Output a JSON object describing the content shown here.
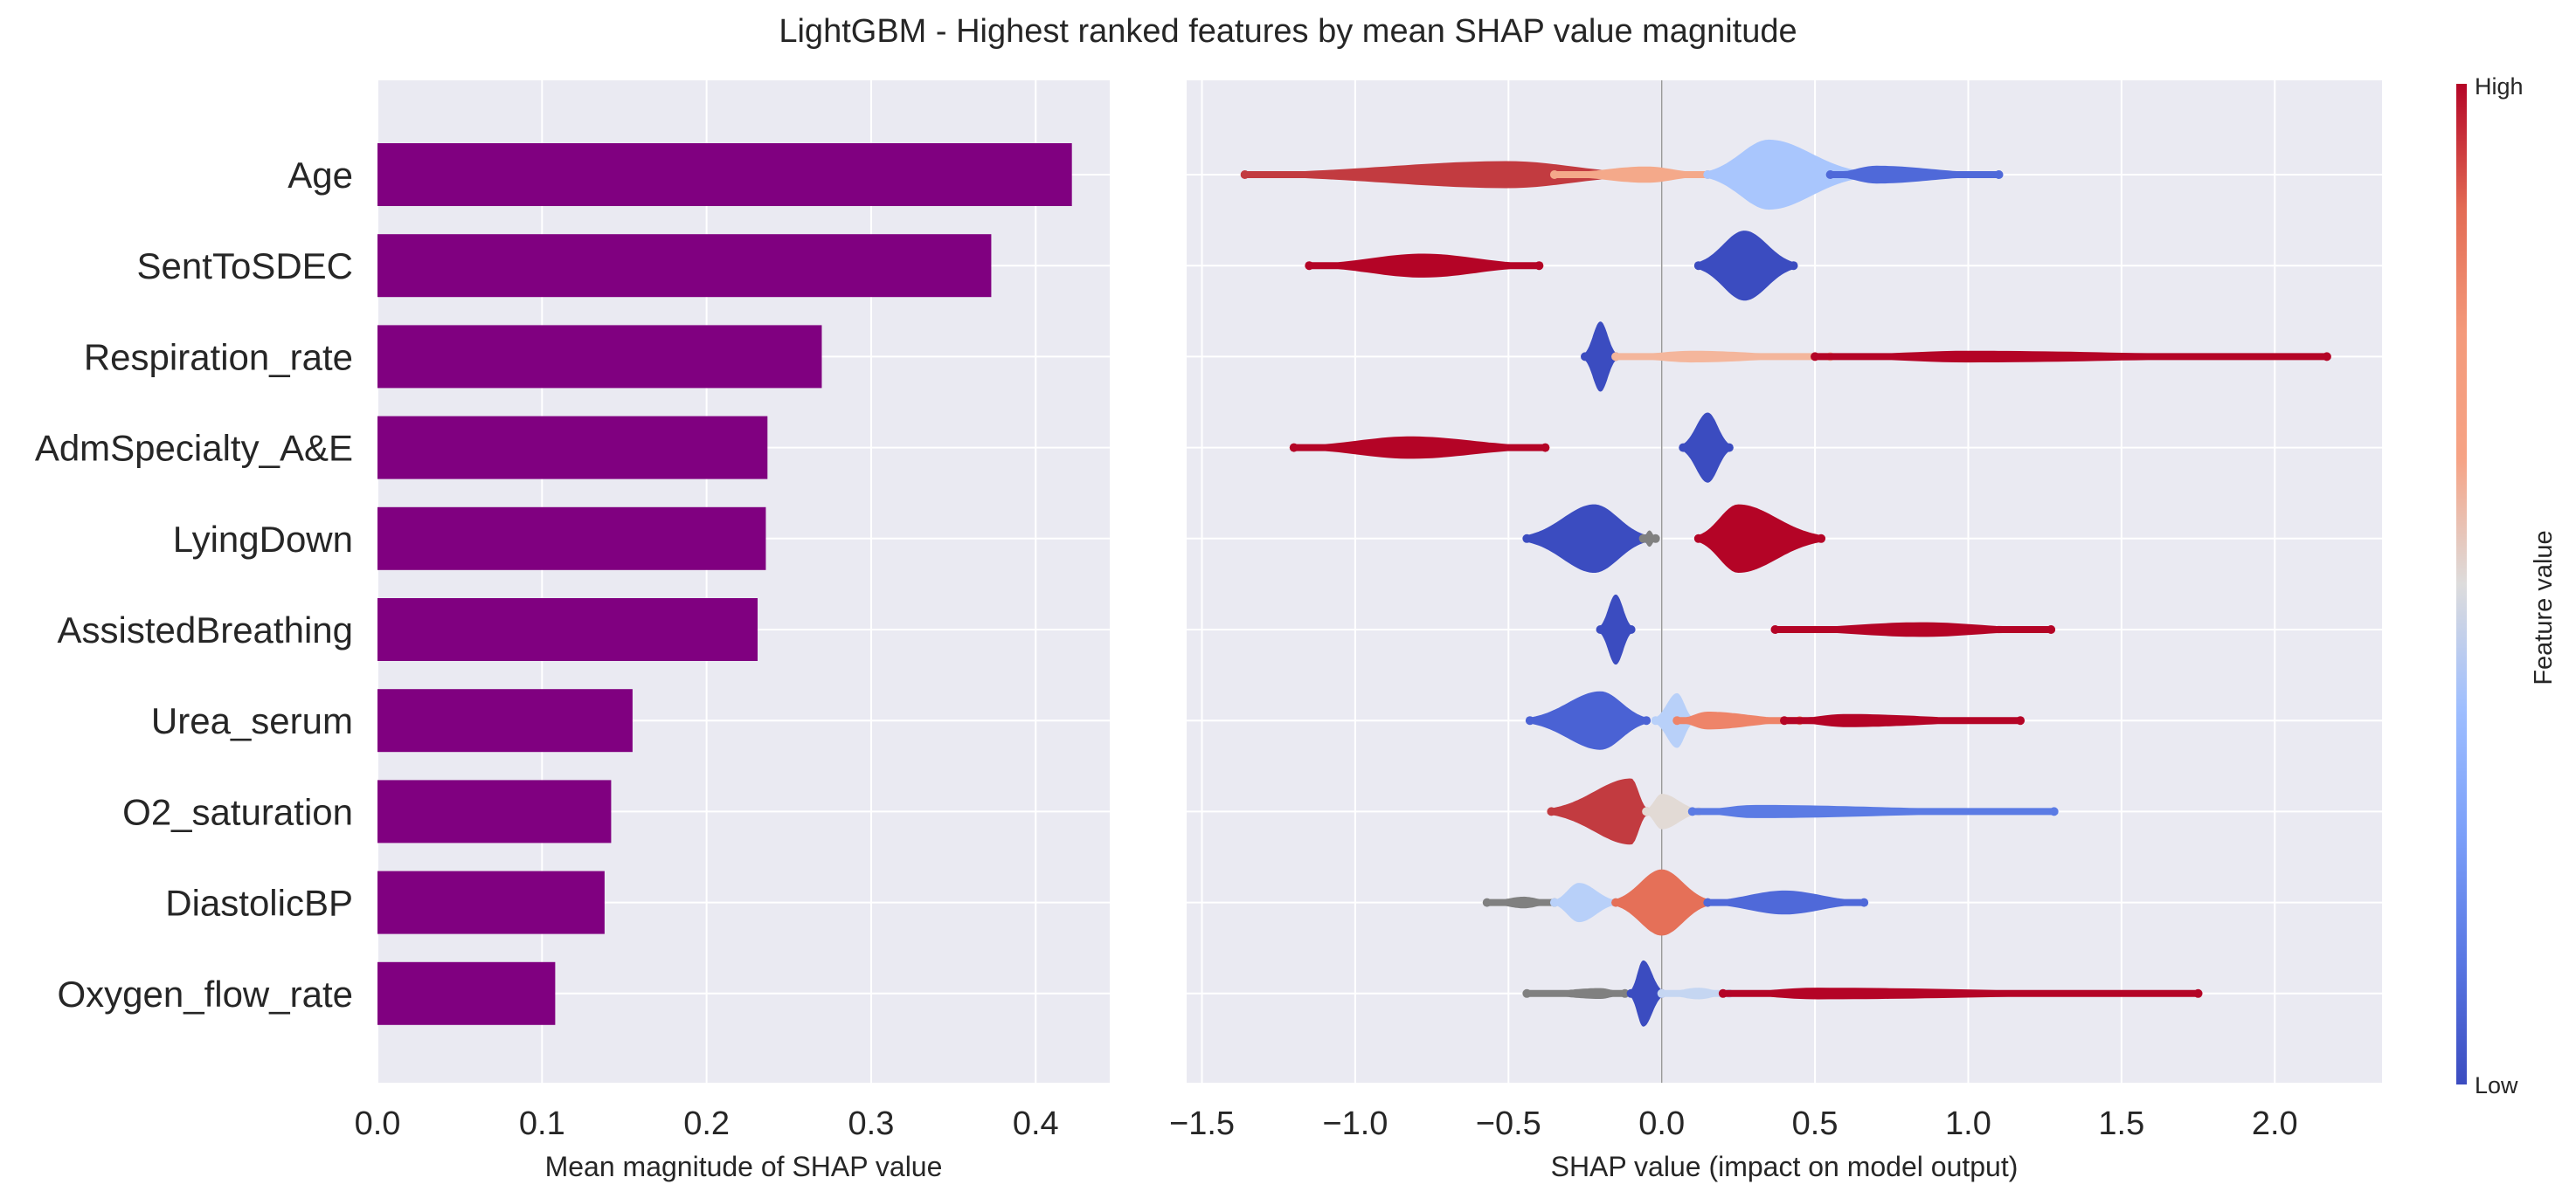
{
  "title": "LightGBM - Highest ranked features by mean SHAP value magnitude",
  "colors": {
    "panel_bg": "#eaeaf2",
    "grid": "#ffffff",
    "bar": "#800080",
    "low": "#3b4cc0",
    "high": "#b40426",
    "missing": "#808080"
  },
  "chart_data": [
    {
      "type": "bar",
      "orientation": "horizontal",
      "categories": [
        "Age",
        "SentToSDEC",
        "Respiration_rate",
        "AdmSpecialty_A&E",
        "LyingDown",
        "AssistedBreathing",
        "Urea_serum",
        "O2_saturation",
        "DiastolicBP",
        "Oxygen_flow_rate"
      ],
      "values": [
        0.422,
        0.373,
        0.27,
        0.237,
        0.236,
        0.231,
        0.155,
        0.142,
        0.138,
        0.108
      ],
      "xlabel": "Mean magnitude of SHAP value",
      "ylabel": "",
      "xlim": [
        0,
        0.445
      ],
      "xticks": [
        0.0,
        0.1,
        0.2,
        0.3,
        0.4
      ],
      "xtick_labels": [
        "0.0",
        "0.1",
        "0.2",
        "0.3",
        "0.4"
      ],
      "grid": true
    },
    {
      "type": "scatter",
      "subtype": "beeswarm",
      "categories": [
        "Age",
        "SentToSDEC",
        "Respiration_rate",
        "AdmSpecialty_A&E",
        "LyingDown",
        "AssistedBreathing",
        "Urea_serum",
        "O2_saturation",
        "DiastolicBP",
        "Oxygen_flow_rate"
      ],
      "xlabel": "SHAP value (impact on model output)",
      "xlim": [
        -1.55,
        2.35
      ],
      "xticks": [
        -1.5,
        -1.0,
        -0.5,
        0.0,
        0.5,
        1.0,
        1.5,
        2.0
      ],
      "xtick_labels": [
        "−1.5",
        "−1.0",
        "−0.5",
        "0.0",
        "0.5",
        "1.0",
        "1.5",
        "2.0"
      ],
      "grid": true,
      "colorbar": {
        "label": "Feature value",
        "high_label": "High",
        "low_label": "Low",
        "colormap": "coolwarm"
      },
      "clusters": [
        [
          {
            "min": -1.36,
            "max": -0.05,
            "center": -0.5,
            "width": 0.34,
            "color": "#c23b40"
          },
          {
            "min": -0.35,
            "max": 0.15,
            "center": -0.05,
            "width": 0.2,
            "color": "#f4a98a"
          },
          {
            "min": 0.15,
            "max": 0.65,
            "center": 0.35,
            "width": 0.9,
            "color": "#a9c6fd"
          },
          {
            "min": 0.55,
            "max": 1.1,
            "center": 0.7,
            "width": 0.22,
            "color": "#4f69d9"
          }
        ],
        [
          {
            "min": -1.15,
            "max": -0.4,
            "center": -0.78,
            "width": 0.3,
            "color": "#b40426"
          },
          {
            "min": 0.12,
            "max": 0.43,
            "center": 0.27,
            "width": 0.9,
            "color": "#3b4cc0"
          }
        ],
        [
          {
            "min": -0.25,
            "max": -0.15,
            "center": -0.2,
            "width": 0.9,
            "color": "#3b4cc0"
          },
          {
            "min": -0.15,
            "max": 0.55,
            "center": 0.1,
            "width": 0.14,
            "color": "#f4b69c"
          },
          {
            "min": 0.5,
            "max": 2.17,
            "center": 1.0,
            "width": 0.14,
            "color": "#b40426"
          }
        ],
        [
          {
            "min": -1.2,
            "max": -0.38,
            "center": -0.82,
            "width": 0.28,
            "color": "#b40426"
          },
          {
            "min": 0.07,
            "max": 0.22,
            "center": 0.15,
            "width": 0.9,
            "color": "#3b4cc0"
          }
        ],
        [
          {
            "min": -0.44,
            "max": -0.05,
            "center": -0.22,
            "width": 0.88,
            "color": "#3b4cc0"
          },
          {
            "min": -0.06,
            "max": -0.02,
            "center": -0.04,
            "width": 0.2,
            "color": "#808080"
          },
          {
            "min": 0.12,
            "max": 0.52,
            "center": 0.25,
            "width": 0.88,
            "color": "#b40426"
          }
        ],
        [
          {
            "min": -0.2,
            "max": -0.1,
            "center": -0.15,
            "width": 0.9,
            "color": "#3b4cc0"
          },
          {
            "min": 0.37,
            "max": 1.27,
            "center": 0.85,
            "width": 0.18,
            "color": "#b40426"
          }
        ],
        [
          {
            "min": -0.43,
            "max": -0.05,
            "center": -0.2,
            "width": 0.75,
            "color": "#4a62d4"
          },
          {
            "min": -0.02,
            "max": 0.1,
            "center": 0.05,
            "width": 0.7,
            "color": "#b8d0f9"
          },
          {
            "min": 0.05,
            "max": 0.45,
            "center": 0.15,
            "width": 0.22,
            "color": "#ee8469"
          },
          {
            "min": 0.4,
            "max": 1.17,
            "center": 0.6,
            "width": 0.16,
            "color": "#b40426"
          }
        ],
        [
          {
            "min": -0.36,
            "max": -0.05,
            "center": -0.1,
            "width": 0.85,
            "color": "#c23b40"
          },
          {
            "min": -0.05,
            "max": 0.12,
            "center": 0.0,
            "width": 0.45,
            "color": "#e2dad5"
          },
          {
            "min": 0.1,
            "max": 1.28,
            "center": 0.3,
            "width": 0.16,
            "color": "#5b7be4"
          }
        ],
        [
          {
            "min": -0.57,
            "max": -0.35,
            "center": -0.45,
            "width": 0.14,
            "color": "#808080"
          },
          {
            "min": -0.35,
            "max": -0.15,
            "center": -0.27,
            "width": 0.5,
            "color": "#b8d0f9"
          },
          {
            "min": -0.15,
            "max": 0.15,
            "center": 0.0,
            "width": 0.85,
            "color": "#e57058"
          },
          {
            "min": 0.15,
            "max": 0.66,
            "center": 0.4,
            "width": 0.3,
            "color": "#4f69d9"
          }
        ],
        [
          {
            "min": -0.44,
            "max": -0.12,
            "center": -0.2,
            "width": 0.13,
            "color": "#808080"
          },
          {
            "min": -0.1,
            "max": 0.0,
            "center": -0.06,
            "width": 0.85,
            "color": "#3b4cc0"
          },
          {
            "min": 0.0,
            "max": 0.22,
            "center": 0.12,
            "width": 0.14,
            "color": "#c5d6f2"
          },
          {
            "min": 0.2,
            "max": 1.75,
            "center": 0.5,
            "width": 0.14,
            "color": "#b40426"
          }
        ]
      ]
    }
  ]
}
